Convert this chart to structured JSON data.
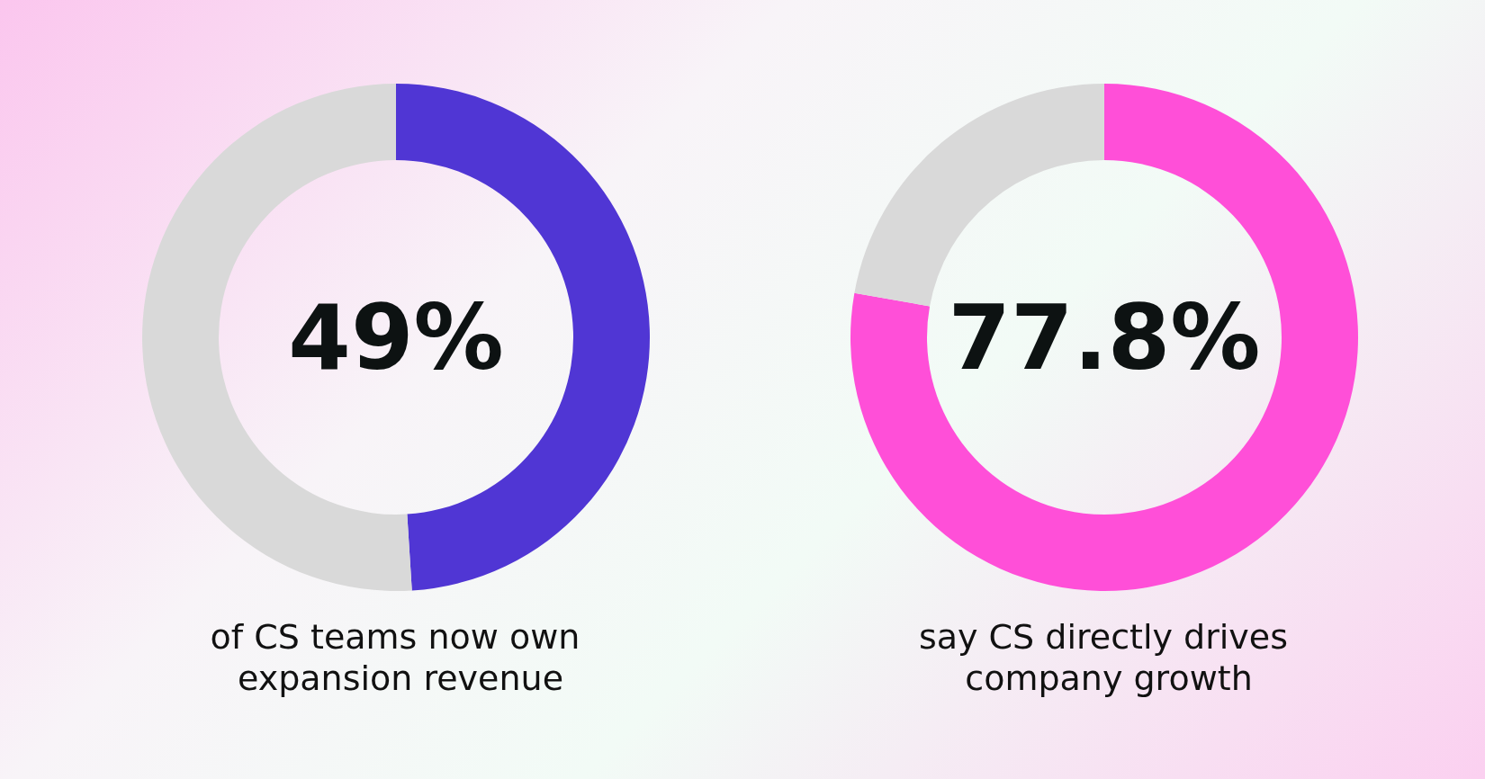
{
  "chart_data": [
    {
      "type": "donut",
      "title": "of CS teams now own expansion revenue",
      "categories": [
        null,
        null
      ],
      "values": [
        49,
        51
      ],
      "colors": [
        "#5036d4",
        "#d9d9d9"
      ],
      "annotations": [
        "49%"
      ]
    },
    {
      "type": "donut",
      "title": "say CS directly drives company growth",
      "categories": [
        null,
        null
      ],
      "values": [
        77.8,
        22.2
      ],
      "colors": [
        "#ff4fd8",
        "#d9d9d9"
      ],
      "annotations": [
        "77.8%"
      ]
    }
  ]
}
